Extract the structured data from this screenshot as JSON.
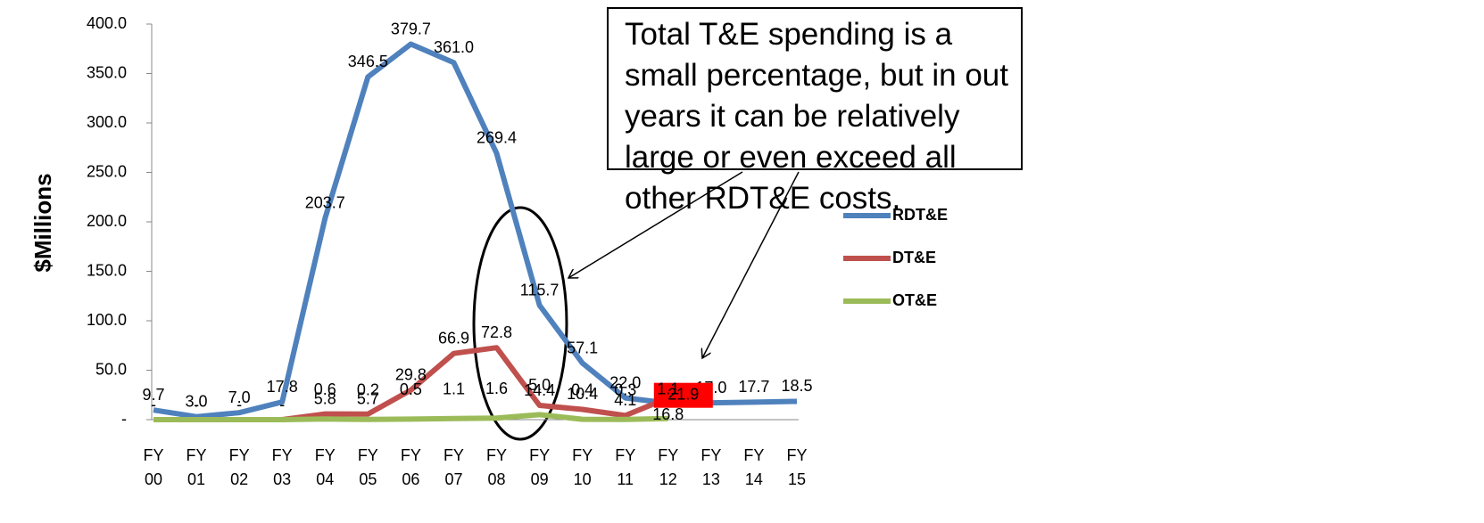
{
  "chart_data": {
    "type": "line",
    "y_label": "$Millions",
    "annotation": "Total T&E spending is a small percentage, but in out years it can be relatively large or even exceed all other RDT&E costs.",
    "categories": [
      "FY 00",
      "FY 01",
      "FY 02",
      "FY 03",
      "FY 04",
      "FY 05",
      "FY 06",
      "FY 07",
      "FY 08",
      "FY 09",
      "FY 10",
      "FY 11",
      "FY 12",
      "FY 13",
      "FY 14",
      "FY 15"
    ],
    "series": [
      {
        "name": "RDT&E",
        "color": "#4f81bd",
        "values": [
          9.7,
          3.0,
          7.0,
          17.8,
          203.7,
          346.5,
          379.7,
          361.0,
          269.4,
          115.7,
          57.1,
          22.0,
          16.8,
          17.0,
          17.7,
          18.5
        ],
        "value_labels": [
          "9.7",
          "3.0",
          "7.0",
          "17.8",
          "203.7",
          "346.5",
          "379.7",
          "361.0",
          "269.4",
          "115.7",
          "57.1",
          "22.0",
          "16.8",
          "17.0",
          "17.7",
          "18.5"
        ]
      },
      {
        "name": "DT&E",
        "color": "#c0504d",
        "values": [
          0,
          0,
          0,
          0,
          5.8,
          5.7,
          29.8,
          66.9,
          72.8,
          14.4,
          10.4,
          4.1,
          21.9,
          null,
          null,
          null
        ],
        "value_labels": [
          "-",
          "-",
          "-",
          "-",
          "5.8",
          "5.7",
          "29.8",
          "66.9",
          "72.8",
          "14.4",
          "10.4",
          "4.1",
          "21.9",
          null,
          null,
          null
        ]
      },
      {
        "name": "OT&E",
        "color": "#9bbb59",
        "values": [
          0,
          0,
          0,
          0,
          0.6,
          0.2,
          0.5,
          1.1,
          1.6,
          5.0,
          0.4,
          0.3,
          1.1,
          null,
          null,
          null
        ],
        "value_labels": [
          null,
          null,
          null,
          null,
          "0.6",
          "0.2",
          "0.5",
          "1.1",
          "1.6",
          "5.0",
          "0.4",
          "0.3",
          "1.1",
          null,
          null,
          null
        ]
      }
    ],
    "ylim": [
      0,
      400
    ],
    "yticks": [
      {
        "value": 0,
        "label": "-"
      },
      {
        "value": 50,
        "label": "50.0"
      },
      {
        "value": 100,
        "label": "100.0"
      },
      {
        "value": 150,
        "label": "150.0"
      },
      {
        "value": 200,
        "label": "200.0"
      },
      {
        "value": 250,
        "label": "250.0"
      },
      {
        "value": 300,
        "label": "300.0"
      },
      {
        "value": 350,
        "label": "350.0"
      },
      {
        "value": 400,
        "label": "400.0"
      }
    ],
    "legend": "right"
  }
}
